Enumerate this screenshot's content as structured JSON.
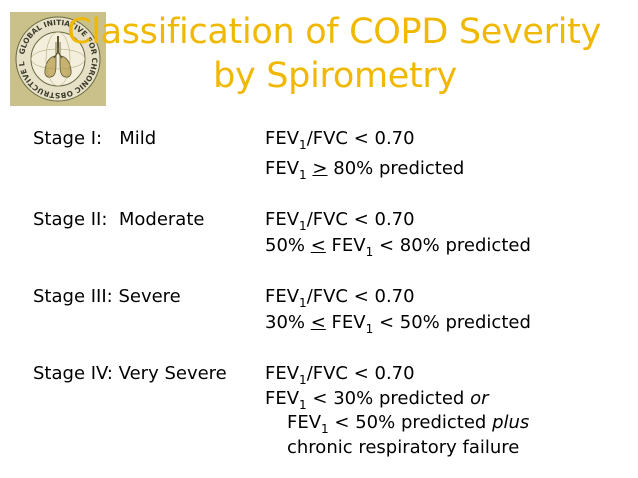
{
  "title": {
    "line1": "Classification of COPD Severity",
    "line2": "by Spirometry"
  },
  "logo": {
    "text": "GLOBAL INITIATIVE FOR CHRONIC OBSTRUCTIVE LUNG DISEASE"
  },
  "stages": [
    {
      "label": "Stage I:   Mild",
      "lines": [
        {
          "pre": "FEV",
          "sub": "1",
          "post": "/FVC < 0.70"
        },
        {
          "pre": "FEV",
          "sub": "1",
          "mid": " ",
          "sym": ">",
          "post": " 80% predicted"
        }
      ]
    },
    {
      "label": "Stage II:  Moderate",
      "lines": [
        {
          "pre": "FEV",
          "sub": "1",
          "post": "/FVC < 0.70"
        },
        {
          "a": "50% ",
          "sym": "<",
          "b": " FEV",
          "sub": "1",
          "post": " < 80% predicted"
        }
      ]
    },
    {
      "label": "Stage III: Severe",
      "lines": [
        {
          "pre": "FEV",
          "sub": "1",
          "post": "/FVC < 0.70"
        },
        {
          "a": "30% ",
          "sym": "<",
          "b": " FEV",
          "sub": "1",
          "post": " < 50% predicted"
        }
      ]
    },
    {
      "label": "Stage IV: Very Severe",
      "lines": [
        {
          "pre": "FEV",
          "sub": "1",
          "post": "/FVC < 0.70"
        },
        {
          "pre": "FEV",
          "sub": "1",
          "post": " < 30% predicted ",
          "em": "or"
        },
        {
          "pre": "FEV",
          "sub": "1",
          "post": " < 50% predicted ",
          "em": "plus"
        },
        {
          "text": "chronic respiratory failure"
        }
      ]
    }
  ]
}
